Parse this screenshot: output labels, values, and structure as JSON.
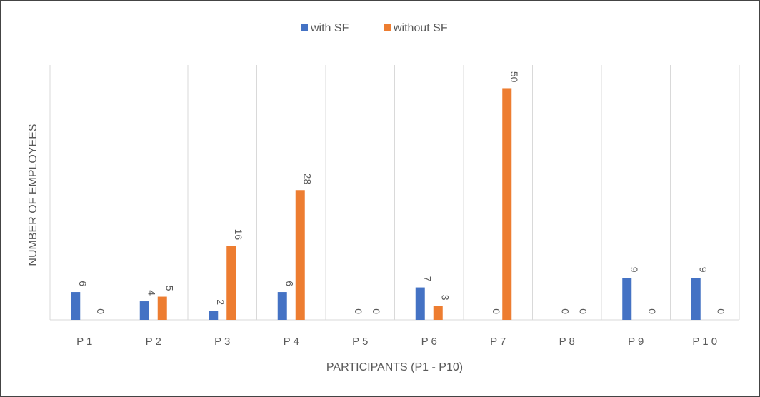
{
  "chart_data": {
    "type": "bar",
    "categories": [
      "P 1",
      "P 2",
      "P 3",
      "P 4",
      "P 5",
      "P 6",
      "P 7",
      "P 8",
      "P 9",
      "P 1 0"
    ],
    "series": [
      {
        "name": "with SF",
        "values": [
          6,
          4,
          2,
          6,
          0,
          7,
          0,
          0,
          9,
          9
        ]
      },
      {
        "name": "without SF",
        "values": [
          0,
          5,
          16,
          28,
          0,
          3,
          50,
          0,
          0,
          0
        ]
      }
    ],
    "xlabel": "PARTICIPANTS (P1 - P10)",
    "ylabel": "NUMBER OF EMPLOYEES",
    "ylim": [
      0,
      55
    ],
    "grid": "vertical category separators",
    "legend": "top-center",
    "data_labels": true,
    "data_label_rotation": "vertical",
    "colors": {
      "with SF": "#4472C4",
      "without SF": "#ED7D31",
      "grid": "#D9D9D9",
      "text": "#595959"
    }
  }
}
